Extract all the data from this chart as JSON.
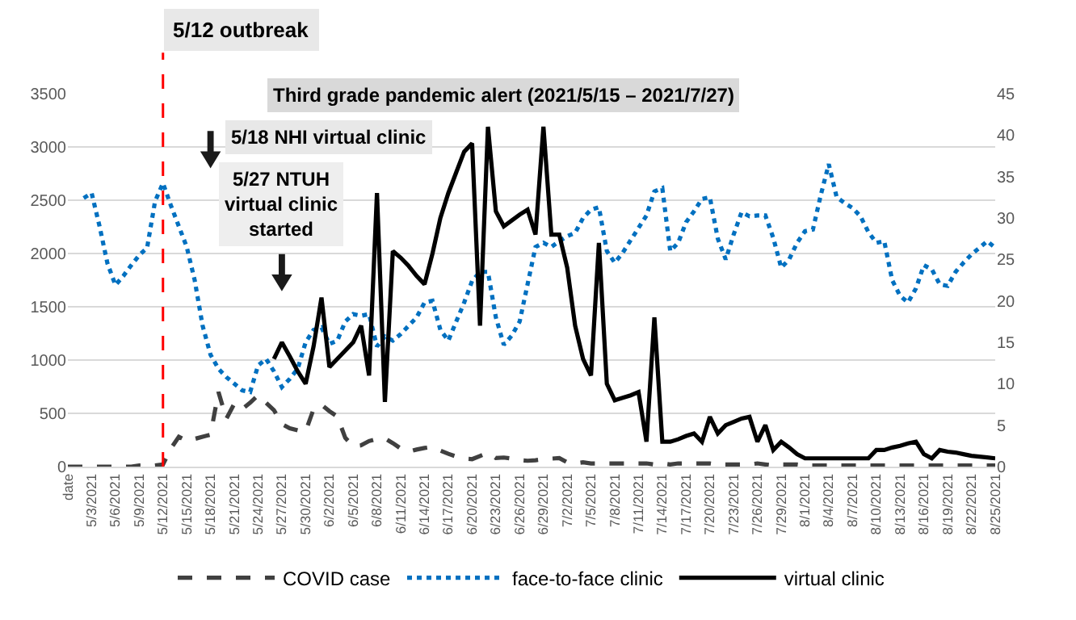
{
  "chart_data": {
    "type": "line",
    "categories": [
      "date",
      null,
      null,
      "5/3/2021",
      null,
      null,
      "5/6/2021",
      null,
      null,
      "5/9/2021",
      null,
      null,
      "5/12/2021",
      null,
      null,
      "5/15/2021",
      null,
      null,
      "5/18/2021",
      null,
      null,
      "5/21/2021",
      null,
      null,
      "5/24/2021",
      null,
      null,
      "5/27/2021",
      null,
      null,
      "5/30/2021",
      null,
      null,
      "6/2/2021",
      null,
      null,
      "6/5/2021",
      null,
      null,
      "6/8/2021",
      null,
      null,
      "6/11/2021",
      null,
      null,
      "6/14/2021",
      null,
      null,
      "6/17/2021",
      null,
      null,
      "6/20/2021",
      null,
      null,
      "6/23/2021",
      null,
      null,
      "6/26/2021",
      null,
      null,
      "6/29/2021",
      null,
      null,
      "7/2/2021",
      null,
      null,
      "7/5/2021",
      null,
      null,
      "7/8/2021",
      null,
      null,
      "7/11/2021",
      null,
      null,
      "7/14/2021",
      null,
      null,
      "7/17/2021",
      null,
      null,
      "7/20/2021",
      null,
      null,
      "7/23/2021",
      null,
      null,
      "7/26/2021",
      null,
      null,
      "7/29/2021",
      null,
      null,
      "8/1/2021",
      null,
      null,
      "8/4/2021",
      null,
      null,
      "8/7/2021",
      null,
      null,
      "8/10/2021",
      null,
      null,
      "8/13/2021",
      null,
      null,
      "8/16/2021",
      null,
      null,
      "8/19/2021",
      null,
      null,
      "8/22/2021",
      null,
      null,
      "8/25/2021"
    ],
    "series": [
      {
        "name": "COVID case",
        "color": "#404040",
        "line_style": "dashed",
        "values": [
          0,
          0,
          0,
          0,
          0,
          0,
          0,
          0,
          0,
          10,
          10,
          10,
          20,
          170,
          280,
          240,
          260,
          280,
          300,
          700,
          450,
          590,
          540,
          600,
          670,
          600,
          530,
          400,
          360,
          340,
          330,
          540,
          580,
          520,
          470,
          270,
          190,
          200,
          240,
          260,
          265,
          220,
          170,
          140,
          160,
          175,
          185,
          150,
          120,
          95,
          75,
          70,
          100,
          130,
          80,
          85,
          75,
          60,
          55,
          60,
          70,
          75,
          80,
          40,
          30,
          40,
          30,
          30,
          30,
          30,
          30,
          30,
          30,
          30,
          20,
          30,
          20,
          30,
          30,
          30,
          30,
          30,
          20,
          20,
          20,
          20,
          20,
          30,
          20,
          10,
          20,
          20,
          20,
          10,
          10,
          10,
          10,
          10,
          10,
          10,
          10,
          10,
          10,
          10,
          10,
          10,
          10,
          10,
          10,
          10,
          10,
          10,
          10,
          10,
          10,
          10,
          10,
          10
        ]
      },
      {
        "name": "face-to-face clinic",
        "color": "#0070c0",
        "line_style": "dotted",
        "axis": "y2",
        "values": [
          null,
          null,
          32.4,
          33,
          29,
          24.5,
          21.9,
          23,
          24.3,
          25.5,
          26.4,
          32,
          34.2,
          31.5,
          29,
          26.5,
          22.5,
          17,
          13.5,
          11.8,
          10.8,
          10,
          9.2,
          9,
          12.2,
          13,
          11.5,
          9.6,
          10.6,
          11.8,
          15,
          16.5,
          16.8,
          14.8,
          15.2,
          17.5,
          18.4,
          18.2,
          18.4,
          14.5,
          15.7,
          15.2,
          16,
          17,
          18,
          19.8,
          20,
          16.5,
          15.2,
          17.5,
          19.8,
          22.4,
          23.5,
          23.5,
          18,
          14.7,
          15.8,
          17.5,
          22,
          26.5,
          27,
          26.5,
          27.2,
          27.8,
          28.2,
          30,
          31,
          31.3,
          26,
          24.6,
          25.8,
          27.3,
          28.8,
          30.3,
          33.2,
          33.6,
          26,
          27,
          29.5,
          30.8,
          32.3,
          32.5,
          27.5,
          25,
          28,
          30.7,
          30.2,
          30.3,
          30.3,
          27.6,
          24,
          25,
          27,
          28.4,
          28.6,
          32.8,
          36.5,
          32.5,
          31.8,
          31.2,
          30.2,
          28.3,
          27,
          27.2,
          22.5,
          20.6,
          19.8,
          21.5,
          24.3,
          23.8,
          22,
          21.8,
          23.5,
          24.6,
          25.6,
          26.4,
          27.2,
          26.4
        ]
      },
      {
        "name": "virtual clinic",
        "color": "#000000",
        "line_style": "solid",
        "axis": "y2",
        "values": [
          null,
          null,
          null,
          null,
          null,
          null,
          null,
          null,
          null,
          null,
          null,
          null,
          null,
          null,
          null,
          null,
          null,
          null,
          null,
          null,
          null,
          null,
          null,
          null,
          null,
          null,
          13,
          15,
          13.3,
          11.5,
          10,
          14.5,
          20.4,
          12,
          13,
          14,
          15,
          17,
          11,
          33,
          7.8,
          26,
          25.2,
          24.2,
          23,
          22,
          25.7,
          30,
          33,
          35.5,
          38,
          39,
          17,
          41,
          30.8,
          29,
          29.7,
          30.4,
          31,
          28,
          41,
          28,
          28,
          24,
          17,
          13,
          11,
          27,
          10,
          8,
          8.3,
          8.6,
          9,
          3,
          18,
          3,
          3,
          3.3,
          3.7,
          4,
          3,
          6,
          4,
          5,
          5.4,
          5.8,
          6,
          3,
          5,
          2,
          3,
          2.3,
          1.5,
          1,
          1,
          1,
          1,
          1,
          1,
          1,
          1,
          1,
          2,
          2,
          2.3,
          2.5,
          2.8,
          3,
          1.5,
          1,
          2,
          1.8,
          1.7,
          1.5,
          1.3,
          1.2,
          1.1,
          1
        ]
      }
    ],
    "ylim": [
      0,
      3500
    ],
    "yticks": [
      0,
      500,
      1000,
      1500,
      2000,
      2500,
      3000,
      3500
    ],
    "y2lim": [
      0,
      45
    ],
    "y2ticks": [
      0,
      5,
      10,
      15,
      20,
      25,
      30,
      35,
      40,
      45
    ],
    "grid": "y",
    "legend": "bottom",
    "ref_lines": [
      {
        "axis": "x",
        "value": "5/12/2021",
        "label": "5/12 outbreak",
        "color": "#ff0000",
        "line_style": "dashed"
      }
    ],
    "annotations": [
      "Third grade pandemic alert (2021/5/15 – 2021/7/27)",
      "5/18 NHI virtual clinic",
      "5/27 NTUH\nvirtual clinic\nstarted"
    ]
  }
}
